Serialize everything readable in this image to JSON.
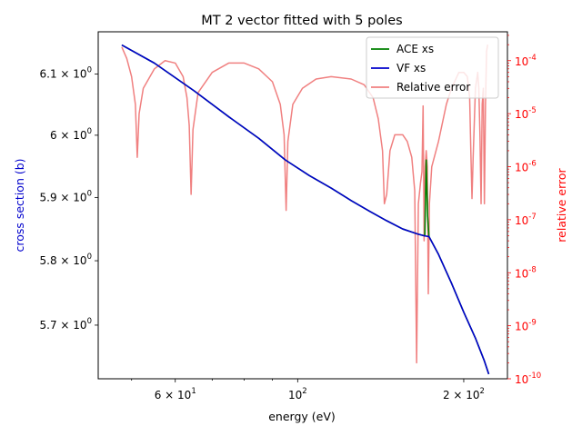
{
  "chart_data": {
    "type": "line",
    "title": "MT 2 vector fitted with 5 poles",
    "xlabel": "energy (eV)",
    "ylabel": "cross section (b)",
    "y2label": "relative error",
    "xscale": "log",
    "yscale": "log",
    "y2scale": "log",
    "xlim": [
      43.5,
      240
    ],
    "ylim": [
      5.618,
      6.17
    ],
    "y2lim": [
      1e-10,
      0.00035
    ],
    "legend": "top-right",
    "grid": false,
    "x_ticks": [
      {
        "value": 60,
        "label": "6 × 10^1"
      },
      {
        "value": 100,
        "label": "10^2"
      },
      {
        "value": 200,
        "label": "2 × 10^2"
      }
    ],
    "y_ticks": [
      {
        "value": 6.1,
        "label": "6.1 × 10^0"
      },
      {
        "value": 6.0,
        "label": "6 × 10^0"
      },
      {
        "value": 5.9,
        "label": "5.9 × 10^0"
      },
      {
        "value": 5.8,
        "label": "5.8 × 10^0"
      },
      {
        "value": 5.7,
        "label": "5.7 × 10^0"
      }
    ],
    "y2_ticks": [
      {
        "value": 1e-10,
        "label": "10^-10"
      },
      {
        "value": 1e-09,
        "label": "10^-9"
      },
      {
        "value": 1e-08,
        "label": "10^-8"
      },
      {
        "value": 1e-07,
        "label": "10^-7"
      },
      {
        "value": 1e-06,
        "label": "10^-6"
      },
      {
        "value": 1e-05,
        "label": "10^-5"
      },
      {
        "value": 0.0001,
        "label": "10^-4"
      }
    ],
    "series": [
      {
        "name": "ACE xs",
        "axis": "left",
        "color": "#008000",
        "points": [
          [
            48,
            6.148
          ],
          [
            55,
            6.118
          ],
          [
            65,
            6.072
          ],
          [
            75,
            6.03
          ],
          [
            85,
            5.995
          ],
          [
            95,
            5.96
          ],
          [
            105,
            5.935
          ],
          [
            115,
            5.915
          ],
          [
            125,
            5.895
          ],
          [
            135,
            5.878
          ],
          [
            145,
            5.863
          ],
          [
            155,
            5.85
          ],
          [
            165,
            5.842
          ],
          [
            170,
            5.839
          ],
          [
            171,
            5.96
          ],
          [
            172,
            5.87
          ],
          [
            173,
            5.838
          ],
          [
            180,
            5.81
          ],
          [
            190,
            5.765
          ],
          [
            200,
            5.72
          ],
          [
            210,
            5.68
          ],
          [
            218,
            5.645
          ],
          [
            222,
            5.625
          ]
        ]
      },
      {
        "name": "VF xs",
        "axis": "left",
        "color": "#0000cc",
        "points": [
          [
            48,
            6.148
          ],
          [
            55,
            6.118
          ],
          [
            65,
            6.072
          ],
          [
            75,
            6.03
          ],
          [
            85,
            5.995
          ],
          [
            95,
            5.96
          ],
          [
            105,
            5.935
          ],
          [
            115,
            5.915
          ],
          [
            125,
            5.895
          ],
          [
            135,
            5.878
          ],
          [
            145,
            5.863
          ],
          [
            155,
            5.85
          ],
          [
            165,
            5.842
          ],
          [
            170,
            5.839
          ],
          [
            173,
            5.838
          ],
          [
            180,
            5.81
          ],
          [
            190,
            5.765
          ],
          [
            200,
            5.72
          ],
          [
            210,
            5.68
          ],
          [
            218,
            5.645
          ],
          [
            222,
            5.625
          ]
        ]
      },
      {
        "name": "Relative error",
        "axis": "right",
        "color": "#f08080",
        "points": [
          [
            48,
            0.00018
          ],
          [
            49,
            0.00011
          ],
          [
            50,
            5e-05
          ],
          [
            50.8,
            1.5e-05
          ],
          [
            51.2,
            1.5e-06
          ],
          [
            51.6,
            1e-05
          ],
          [
            52.5,
            3e-05
          ],
          [
            55,
            7e-05
          ],
          [
            57.5,
            0.0001
          ],
          [
            60,
            9e-05
          ],
          [
            62,
            5e-05
          ],
          [
            63,
            2e-05
          ],
          [
            63.6,
            6e-06
          ],
          [
            64.1,
            3e-07
          ],
          [
            64.6,
            5e-06
          ],
          [
            66,
            2.5e-05
          ],
          [
            70,
            6e-05
          ],
          [
            75,
            9e-05
          ],
          [
            80,
            9e-05
          ],
          [
            85,
            7e-05
          ],
          [
            90,
            4e-05
          ],
          [
            93,
            1.5e-05
          ],
          [
            94.5,
            4e-06
          ],
          [
            95.3,
            1.5e-07
          ],
          [
            96,
            3e-06
          ],
          [
            98,
            1.5e-05
          ],
          [
            102,
            3e-05
          ],
          [
            108,
            4.5e-05
          ],
          [
            115,
            5e-05
          ],
          [
            125,
            4.5e-05
          ],
          [
            132,
            3.5e-05
          ],
          [
            137,
            2e-05
          ],
          [
            140,
            8e-06
          ],
          [
            142.5,
            2e-06
          ],
          [
            143.6,
            2e-07
          ],
          [
            145,
            3e-07
          ],
          [
            147,
            2e-06
          ],
          [
            150,
            4e-06
          ],
          [
            155,
            4e-06
          ],
          [
            158,
            3e-06
          ],
          [
            161,
            1.5e-06
          ],
          [
            163,
            3.5e-07
          ],
          [
            164.3,
            2e-10
          ],
          [
            165.5,
            2e-07
          ],
          [
            167,
            5e-07
          ],
          [
            168,
            8e-07
          ],
          [
            168.8,
            1.4e-05
          ],
          [
            169.5,
            4e-08
          ],
          [
            170.3,
            1e-06
          ],
          [
            171,
            2e-06
          ],
          [
            171.8,
            1e-06
          ],
          [
            172.5,
            4e-09
          ],
          [
            173.3,
            2e-07
          ],
          [
            175,
            1e-06
          ],
          [
            180,
            3e-06
          ],
          [
            186,
            1.5e-05
          ],
          [
            190,
            3e-05
          ],
          [
            196,
            6e-05
          ],
          [
            200,
            6e-05
          ],
          [
            203,
            5e-05
          ],
          [
            205,
            2e-05
          ],
          [
            206,
            2e-06
          ],
          [
            207,
            2.5e-07
          ],
          [
            208,
            1.5e-06
          ],
          [
            210,
            3e-05
          ],
          [
            212,
            6e-05
          ],
          [
            213,
            3e-05
          ],
          [
            214,
            4e-06
          ],
          [
            215,
            2e-07
          ],
          [
            216,
            1.5e-05
          ],
          [
            217,
            3e-05
          ],
          [
            218,
            2e-07
          ],
          [
            219,
            1.5e-05
          ],
          [
            220,
            0.00015
          ],
          [
            221,
            0.0002
          ]
        ]
      }
    ]
  }
}
